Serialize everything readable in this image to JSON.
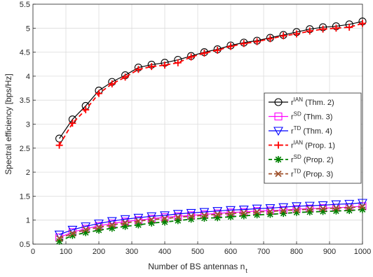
{
  "chart_data": {
    "type": "line",
    "xlabel": "Number of BS antennas n",
    "xlabel_sub": "t",
    "ylabel": "Spectral efficiency [bps/Hz]",
    "xlim": [
      0,
      1000
    ],
    "ylim": [
      0.5,
      5.5
    ],
    "xticks": [
      0,
      100,
      200,
      300,
      400,
      500,
      600,
      700,
      800,
      900,
      1000
    ],
    "yticks": [
      0.5,
      1,
      1.5,
      2,
      2.5,
      3,
      3.5,
      4,
      4.5,
      5,
      5.5
    ],
    "xtick_labels": [
      "0",
      "100",
      "200",
      "300",
      "400",
      "500",
      "600",
      "700",
      "800",
      "900",
      "1000"
    ],
    "ytick_labels": [
      "0.5",
      "1",
      "1.5",
      "2",
      "2.5",
      "3",
      "3.5",
      "4",
      "4.5",
      "5",
      "5.5"
    ],
    "grid": true,
    "legend_position": "right",
    "x": [
      80,
      120,
      160,
      200,
      240,
      280,
      320,
      360,
      400,
      440,
      480,
      520,
      560,
      600,
      640,
      680,
      720,
      760,
      800,
      840,
      880,
      920,
      960,
      1000
    ],
    "series": [
      {
        "name": "r^IAN (Thm. 2)",
        "base": "r",
        "sup": "IAN",
        "suffix": " (Thm. 2)",
        "color": "#000000",
        "marker": "circle",
        "dash": "solid",
        "values": [
          2.7,
          3.1,
          3.38,
          3.7,
          3.88,
          4.02,
          4.18,
          4.24,
          4.28,
          4.34,
          4.42,
          4.5,
          4.56,
          4.64,
          4.7,
          4.74,
          4.8,
          4.86,
          4.92,
          4.98,
          5.02,
          5.04,
          5.08,
          5.14
        ]
      },
      {
        "name": "r^SD (Thm. 3)",
        "base": "r",
        "sup": "SD",
        "suffix": " (Thm. 3)",
        "color": "#ff00ff",
        "marker": "square",
        "dash": "solid",
        "values": [
          0.64,
          0.75,
          0.82,
          0.88,
          0.93,
          0.97,
          1.0,
          1.03,
          1.06,
          1.08,
          1.1,
          1.12,
          1.14,
          1.16,
          1.17,
          1.19,
          1.2,
          1.21,
          1.23,
          1.24,
          1.25,
          1.26,
          1.27,
          1.29
        ]
      },
      {
        "name": "r^TD (Thm. 4)",
        "base": "r",
        "sup": "TD",
        "suffix": " (Thm. 4)",
        "color": "#0000ff",
        "marker": "triangle-down",
        "dash": "solid",
        "values": [
          0.7,
          0.8,
          0.87,
          0.93,
          0.98,
          1.02,
          1.05,
          1.08,
          1.1,
          1.13,
          1.15,
          1.17,
          1.19,
          1.21,
          1.22,
          1.24,
          1.25,
          1.27,
          1.29,
          1.3,
          1.31,
          1.33,
          1.34,
          1.36
        ]
      },
      {
        "name": "r^IAN (Prop. 1)",
        "base": "r",
        "sup": "IAN",
        "suffix": " (Prop. 1)",
        "color": "#ff0000",
        "marker": "plus",
        "dash": "dashed",
        "values": [
          2.56,
          3.02,
          3.3,
          3.64,
          3.84,
          3.98,
          4.14,
          4.2,
          4.23,
          4.28,
          4.4,
          4.48,
          4.54,
          4.62,
          4.68,
          4.72,
          4.78,
          4.84,
          4.88,
          4.94,
          4.98,
          5.0,
          5.02,
          5.1
        ]
      },
      {
        "name": "r^SD (Prop. 2)",
        "base": "r",
        "sup": "SD",
        "suffix": " (Prop. 2)",
        "color": "#008000",
        "marker": "asterisk",
        "dash": "dashed",
        "values": [
          0.56,
          0.68,
          0.74,
          0.79,
          0.83,
          0.87,
          0.9,
          0.94,
          0.96,
          0.99,
          1.02,
          1.04,
          1.05,
          1.07,
          1.09,
          1.11,
          1.12,
          1.14,
          1.16,
          1.17,
          1.18,
          1.19,
          1.2,
          1.22
        ]
      },
      {
        "name": "r^TD (Prop. 3)",
        "base": "r",
        "sup": "TD",
        "suffix": " (Prop. 3)",
        "color": "#a0522d",
        "marker": "x",
        "dash": "dashed",
        "values": [
          0.62,
          0.72,
          0.8,
          0.85,
          0.9,
          0.94,
          0.98,
          1.01,
          1.03,
          1.06,
          1.08,
          1.1,
          1.12,
          1.14,
          1.15,
          1.17,
          1.18,
          1.2,
          1.21,
          1.23,
          1.24,
          1.25,
          1.26,
          1.28
        ]
      }
    ]
  }
}
